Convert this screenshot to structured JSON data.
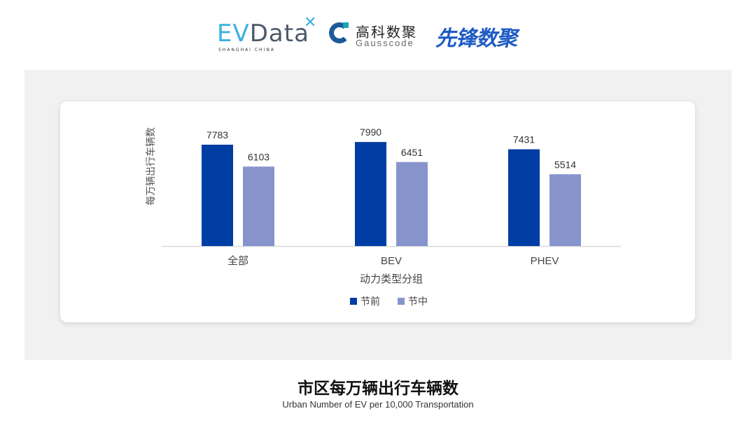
{
  "logos": {
    "evdata": {
      "ev": "EV",
      "data": "Data",
      "sub": "SHANGHAI CHINA"
    },
    "gausscode": {
      "cn": "高科数聚",
      "en": "Gausscode"
    },
    "xianfeng": "先锋数聚"
  },
  "chart_data": {
    "type": "bar",
    "categories": [
      "全部",
      "BEV",
      "PHEV"
    ],
    "series": [
      {
        "name": "节前",
        "values": [
          7783,
          7990,
          7431
        ],
        "color": "#003da5"
      },
      {
        "name": "节中",
        "values": [
          6103,
          6451,
          5514
        ],
        "color": "#8794cc"
      }
    ],
    "xlabel": "动力类型分组",
    "ylabel": "每万辆出行车辆数",
    "ylim": [
      0,
      10000
    ],
    "grid": false,
    "legend_position": "bottom",
    "data_labels": true
  },
  "footer": {
    "title": "市区每万辆出行车辆数",
    "subtitle": "Urban Number of EV per 10,000 Transportation"
  }
}
